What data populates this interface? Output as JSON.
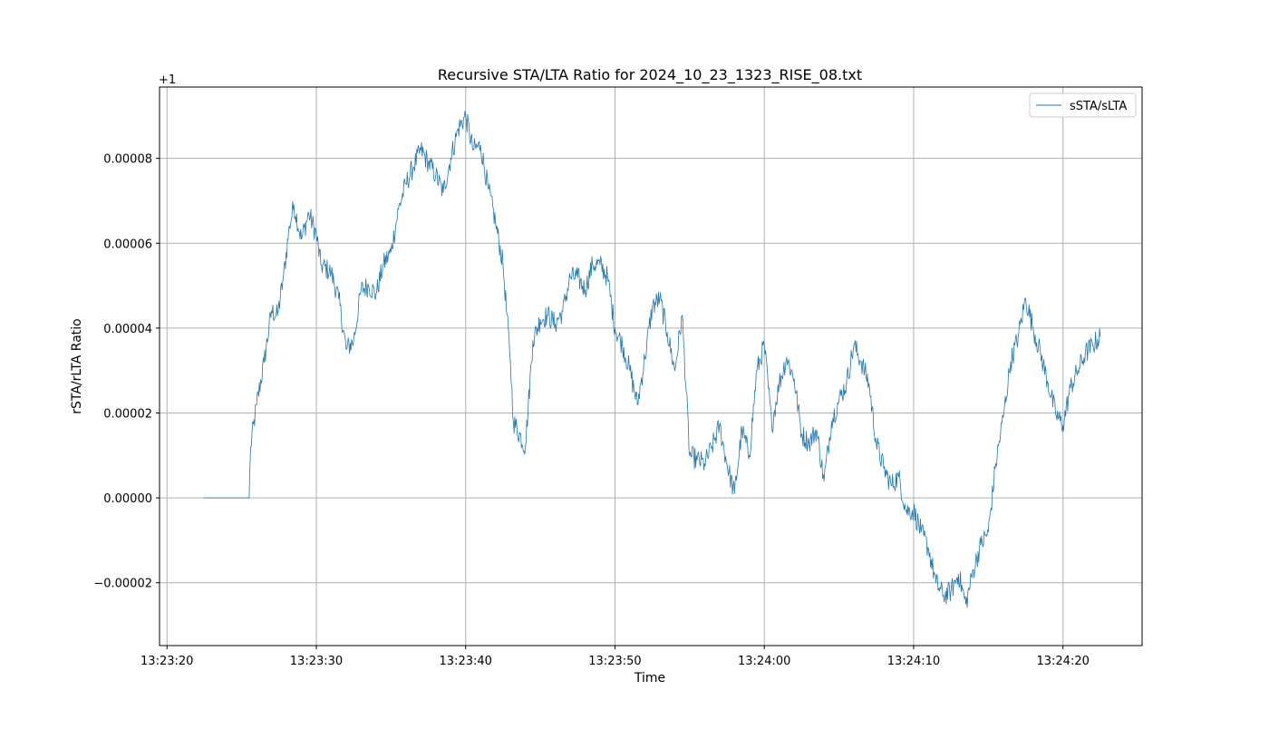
{
  "chart_data": {
    "type": "line",
    "title": "Recursive STA/LTA Ratio for 2024_10_23_1323_RISE_08.txt",
    "xlabel": "Time",
    "ylabel": "rSTA/rLTA Ratio",
    "y_offset_label": "+1",
    "y_offset": 1,
    "grid": true,
    "legend_placement": "top-right",
    "series_color": "#1f77b4",
    "xlim": [
      "13:23:19.5",
      "13:24:25.3"
    ],
    "ylim": [
      -3.48e-05,
      9.68e-05
    ],
    "x_ticks": [
      "13:23:20",
      "13:23:30",
      "13:23:40",
      "13:23:50",
      "13:24:00",
      "13:24:10",
      "13:24:20"
    ],
    "y_ticks": [
      {
        "value": -2e-05,
        "label": "−0.00002"
      },
      {
        "value": 0.0,
        "label": "0.00000"
      },
      {
        "value": 2e-05,
        "label": "0.00002"
      },
      {
        "value": 4e-05,
        "label": "0.00004"
      },
      {
        "value": 6e-05,
        "label": "0.00006"
      },
      {
        "value": 8e-05,
        "label": "0.00008"
      }
    ],
    "series": [
      {
        "name": "sSTA/sLTA",
        "x": [
          "13:23:22.5",
          "13:23:25.5",
          "13:23:25.6",
          "13:23:26.0",
          "13:23:26.5",
          "13:23:27.0",
          "13:23:27.4",
          "13:23:27.8",
          "13:23:28.2",
          "13:23:28.5",
          "13:23:29.0",
          "13:23:29.5",
          "13:23:30.0",
          "13:23:30.3",
          "13:23:31.0",
          "13:23:31.5",
          "13:23:32.0",
          "13:23:32.5",
          "13:23:33.0",
          "13:23:33.5",
          "13:23:34.0",
          "13:23:34.5",
          "13:23:35.0",
          "13:23:35.5",
          "13:23:36.0",
          "13:23:36.5",
          "13:23:37.0",
          "13:23:37.5",
          "13:23:38.0",
          "13:23:38.5",
          "13:23:39.0",
          "13:23:39.5",
          "13:23:40.0",
          "13:23:40.5",
          "13:23:41.0",
          "13:23:41.5",
          "13:23:42.0",
          "13:23:42.5",
          "13:23:43.0",
          "13:23:43.2",
          "13:23:44.0",
          "13:23:44.5",
          "13:23:45.0",
          "13:23:45.5",
          "13:23:46.0",
          "13:23:46.5",
          "13:23:47.0",
          "13:23:47.5",
          "13:23:48.0",
          "13:23:48.5",
          "13:23:49.0",
          "13:23:49.5",
          "13:23:50.0",
          "13:23:50.5",
          "13:23:51.0",
          "13:23:51.5",
          "13:23:52.0",
          "13:23:52.5",
          "13:23:53.0",
          "13:23:53.5",
          "13:23:54.0",
          "13:23:54.5",
          "13:23:55.0",
          "13:23:55.5",
          "13:23:56.0",
          "13:23:56.5",
          "13:23:57.0",
          "13:23:57.5",
          "13:23:58.0",
          "13:23:58.5",
          "13:23:59.0",
          "13:23:59.5",
          "13:24:00.0",
          "13:24:00.5",
          "13:24:01.0",
          "13:24:01.5",
          "13:24:02.0",
          "13:24:02.5",
          "13:24:03.0",
          "13:24:03.5",
          "13:24:04.0",
          "13:24:04.5",
          "13:24:05.0",
          "13:24:05.5",
          "13:24:06.0",
          "13:24:06.5",
          "13:24:07.0",
          "13:24:07.5",
          "13:24:08.0",
          "13:24:08.5",
          "13:24:09.0",
          "13:24:09.5",
          "13:24:10.0",
          "13:24:10.5",
          "13:24:11.0",
          "13:24:11.5",
          "13:24:12.0",
          "13:24:12.5",
          "13:24:13.0",
          "13:24:13.5",
          "13:24:14.0",
          "13:24:14.5",
          "13:24:15.0",
          "13:24:15.5",
          "13:24:16.0",
          "13:24:16.5",
          "13:24:17.0",
          "13:24:17.5",
          "13:24:18.0",
          "13:24:18.5",
          "13:24:19.0",
          "13:24:19.5",
          "13:24:20.0",
          "13:24:20.5",
          "13:24:21.0",
          "13:24:21.5",
          "13:24:22.0",
          "13:24:22.5"
        ],
        "y": [
          0.0,
          0.0,
          1.2e-05,
          2.2e-05,
          3.2e-05,
          4.4e-05,
          4.3e-05,
          5.2e-05,
          6.4e-05,
          6.9e-05,
          6.1e-05,
          6.7e-05,
          6.2e-05,
          5.5e-05,
          5.3e-05,
          4.7e-05,
          3.5e-05,
          3.7e-05,
          4.9e-05,
          5e-05,
          4.8e-05,
          5.5e-05,
          5.8e-05,
          6.8e-05,
          7.4e-05,
          7.8e-05,
          8.2e-05,
          7.9e-05,
          7.6e-05,
          7.2e-05,
          8e-05,
          8.7e-05,
          9e-05,
          8.2e-05,
          8.3e-05,
          7.3e-05,
          6.5e-05,
          5.5e-05,
          3.2e-05,
          1.8e-05,
          1.2e-05,
          3.7e-05,
          4.2e-05,
          4.3e-05,
          4.1e-05,
          4.4e-05,
          5.2e-05,
          5.2e-05,
          4.9e-05,
          5.5e-05,
          5.5e-05,
          5.2e-05,
          4e-05,
          3.6e-05,
          3e-05,
          2.2e-05,
          3.3e-05,
          4.5e-05,
          4.7e-05,
          3.9e-05,
          3e-05,
          4.3e-05,
          1e-05,
          9e-06,
          8e-06,
          1.2e-05,
          1.7e-05,
          8e-06,
          1e-06,
          1.6e-05,
          1e-05,
          3e-05,
          3.6e-05,
          1.7e-05,
          2.7e-05,
          3.3e-05,
          2.8e-05,
          1.5e-05,
          1.3e-05,
          1.6e-05,
          4e-06,
          1.8e-05,
          2.3e-05,
          2.7e-05,
          3.6e-05,
          3.2e-05,
          2.7e-05,
          1.3e-05,
          7e-06,
          3e-06,
          5e-06,
          -3e-06,
          -3e-06,
          -8e-06,
          -1.2e-05,
          -2e-05,
          -2.3e-05,
          -2.2e-05,
          -1.8e-05,
          -2.5e-05,
          -1.7e-05,
          -1.1e-05,
          -8e-06,
          8e-06,
          1.9e-05,
          3.2e-05,
          3.8e-05,
          4.7e-05,
          4e-05,
          3.4e-05,
          2.7e-05,
          2e-05,
          1.7e-05,
          2.6e-05,
          3e-05,
          3.4e-05,
          3.6e-05,
          3.8e-05
        ]
      }
    ]
  }
}
